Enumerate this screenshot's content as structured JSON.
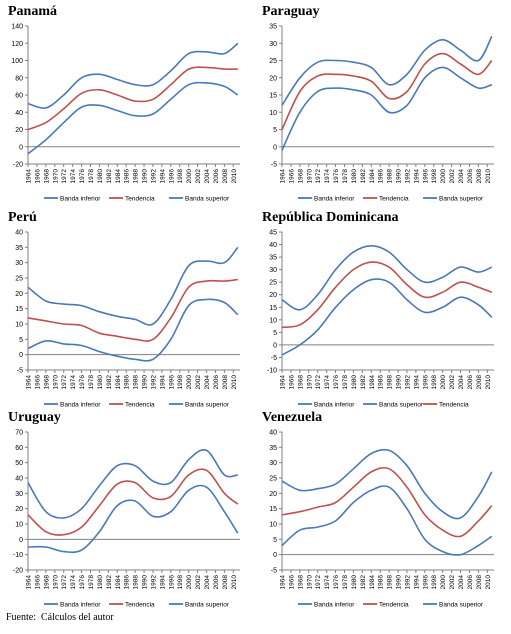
{
  "colors": {
    "lower": "#4a78b8",
    "trend": "#c0504d",
    "upper": "#4a78b8",
    "axis": "#808080",
    "zero": "#808080"
  },
  "x_tick_labels": [
    "1964",
    "1966",
    "1968",
    "1970",
    "1972",
    "1974",
    "1976",
    "1978",
    "1980",
    "1982",
    "1984",
    "1986",
    "1988",
    "1990",
    "1992",
    "1994",
    "1996",
    "1998",
    "2000",
    "2002",
    "2004",
    "2006",
    "2008",
    "2010"
  ],
  "legend": {
    "lower": "Banda inferior",
    "trend": "Tendencia",
    "upper": "Banda superior"
  },
  "source_label": "Fuente:",
  "source_text": "Cálculos del autor",
  "chart_data": [
    {
      "type": "line",
      "title": "Panamá",
      "x": [
        1964,
        1968,
        1972,
        1976,
        1980,
        1984,
        1988,
        1992,
        1996,
        2000,
        2004,
        2008,
        2011
      ],
      "ylim": [
        -20,
        140
      ],
      "yticks": [
        -20,
        0,
        20,
        40,
        60,
        80,
        100,
        120,
        140
      ],
      "legend_order": [
        "lower",
        "trend",
        "upper"
      ],
      "series": [
        {
          "name": "Banda inferior",
          "key": "lower",
          "values": [
            -8,
            8,
            28,
            46,
            48,
            42,
            36,
            38,
            55,
            72,
            74,
            70,
            60
          ]
        },
        {
          "name": "Tendencia",
          "key": "trend",
          "values": [
            20,
            28,
            44,
            62,
            66,
            60,
            53,
            55,
            72,
            90,
            92,
            90,
            90
          ]
        },
        {
          "name": "Banda superior",
          "key": "upper",
          "values": [
            50,
            45,
            60,
            80,
            84,
            78,
            72,
            72,
            88,
            108,
            110,
            108,
            120
          ]
        }
      ]
    },
    {
      "type": "line",
      "title": "Paraguay",
      "x": [
        1964,
        1968,
        1972,
        1976,
        1980,
        1984,
        1988,
        1992,
        1996,
        2000,
        2004,
        2008,
        2011
      ],
      "ylim": [
        -5,
        35
      ],
      "yticks": [
        -5,
        0,
        5,
        10,
        15,
        20,
        25,
        30,
        35
      ],
      "legend_order": [
        "lower",
        "trend",
        "upper"
      ],
      "series": [
        {
          "name": "Banda inferior",
          "key": "lower",
          "values": [
            -1,
            10,
            16,
            17,
            16.5,
            15,
            10,
            12,
            20,
            23,
            20,
            17,
            18
          ]
        },
        {
          "name": "Tendencia",
          "key": "trend",
          "values": [
            5,
            16,
            20.5,
            21,
            20.5,
            19,
            14,
            16,
            24,
            27,
            24,
            21,
            25
          ]
        },
        {
          "name": "Banda superior",
          "key": "upper",
          "values": [
            12,
            20,
            24.5,
            25,
            24.5,
            23,
            18,
            21,
            28,
            31,
            28,
            25,
            32
          ]
        }
      ]
    },
    {
      "type": "line",
      "title": "Perú",
      "x": [
        1964,
        1968,
        1972,
        1976,
        1980,
        1984,
        1988,
        1992,
        1996,
        2000,
        2004,
        2008,
        2011
      ],
      "ylim": [
        -5,
        40
      ],
      "yticks": [
        -5,
        0,
        5,
        10,
        15,
        20,
        25,
        30,
        35,
        40
      ],
      "legend_order": [
        "lower",
        "trend",
        "upper"
      ],
      "series": [
        {
          "name": "Banda inferior",
          "key": "lower",
          "values": [
            2,
            4.5,
            3.5,
            3,
            1,
            -0.5,
            -1.5,
            -1.5,
            5,
            16,
            18,
            17,
            13
          ]
        },
        {
          "name": "Tendencia",
          "key": "trend",
          "values": [
            12,
            11,
            10,
            9.5,
            7,
            6,
            5,
            5,
            12,
            22,
            24,
            24,
            24.5
          ]
        },
        {
          "name": "Banda superior",
          "key": "upper",
          "values": [
            22,
            17.5,
            16.5,
            16,
            14,
            12.5,
            11.5,
            10,
            18,
            29,
            30.5,
            30,
            35
          ]
        }
      ]
    },
    {
      "type": "line",
      "title": "República Dominicana",
      "x": [
        1964,
        1968,
        1972,
        1976,
        1980,
        1984,
        1988,
        1992,
        1996,
        2000,
        2004,
        2008,
        2011
      ],
      "ylim": [
        -10,
        45
      ],
      "yticks": [
        -10,
        -5,
        0,
        5,
        10,
        15,
        20,
        25,
        30,
        35,
        40,
        45
      ],
      "legend_order": [
        "lower",
        "upper",
        "trend"
      ],
      "series": [
        {
          "name": "Banda inferior",
          "key": "lower",
          "values": [
            -4,
            0,
            6,
            15,
            22,
            26,
            25,
            18,
            13,
            15,
            19,
            16,
            11
          ]
        },
        {
          "name": "Tendencia",
          "key": "trend",
          "values": [
            7,
            8,
            14,
            23,
            30,
            33,
            31,
            24,
            19,
            21,
            25,
            23,
            21
          ]
        },
        {
          "name": "Banda superior",
          "key": "upper",
          "values": [
            18,
            14,
            20,
            30,
            37,
            39.5,
            37,
            30,
            25,
            27,
            31,
            29,
            31
          ]
        }
      ]
    },
    {
      "type": "line",
      "title": "Uruguay",
      "x": [
        1964,
        1968,
        1972,
        1976,
        1980,
        1984,
        1988,
        1992,
        1996,
        2000,
        2004,
        2008,
        2011
      ],
      "ylim": [
        -20,
        70
      ],
      "yticks": [
        -20,
        -10,
        0,
        10,
        20,
        30,
        40,
        50,
        60,
        70
      ],
      "legend_order": [
        "lower",
        "trend",
        "upper"
      ],
      "series": [
        {
          "name": "Banda inferior",
          "key": "lower",
          "values": [
            -5,
            -5,
            -8,
            -7,
            5,
            22,
            25,
            15,
            18,
            32,
            34,
            18,
            4
          ]
        },
        {
          "name": "Tendencia",
          "key": "trend",
          "values": [
            16,
            5,
            3,
            8,
            22,
            36,
            37,
            27,
            28,
            42,
            45,
            30,
            23
          ]
        },
        {
          "name": "Banda superior",
          "key": "upper",
          "values": [
            37,
            18,
            14,
            20,
            35,
            48,
            48,
            38,
            37,
            52,
            58,
            42,
            42
          ]
        }
      ]
    },
    {
      "type": "line",
      "title": "Venezuela",
      "x": [
        1964,
        1968,
        1972,
        1976,
        1980,
        1984,
        1988,
        1992,
        1996,
        2000,
        2004,
        2008,
        2011
      ],
      "ylim": [
        -5,
        40
      ],
      "yticks": [
        -5,
        0,
        5,
        10,
        15,
        20,
        25,
        30,
        35,
        40
      ],
      "legend_order": [
        "lower",
        "trend",
        "upper"
      ],
      "series": [
        {
          "name": "Banda inferior",
          "key": "lower",
          "values": [
            3,
            8,
            9,
            11,
            17,
            21,
            22,
            15,
            5,
            1,
            0,
            3,
            6
          ]
        },
        {
          "name": "Tendencia",
          "key": "trend",
          "values": [
            13,
            14,
            15.5,
            17,
            22,
            27,
            28,
            22,
            13,
            8,
            6,
            11,
            16
          ]
        },
        {
          "name": "Banda superior",
          "key": "upper",
          "values": [
            24,
            21,
            21.5,
            23,
            28,
            33,
            34,
            29,
            20,
            14,
            12,
            19,
            27
          ]
        }
      ]
    }
  ]
}
